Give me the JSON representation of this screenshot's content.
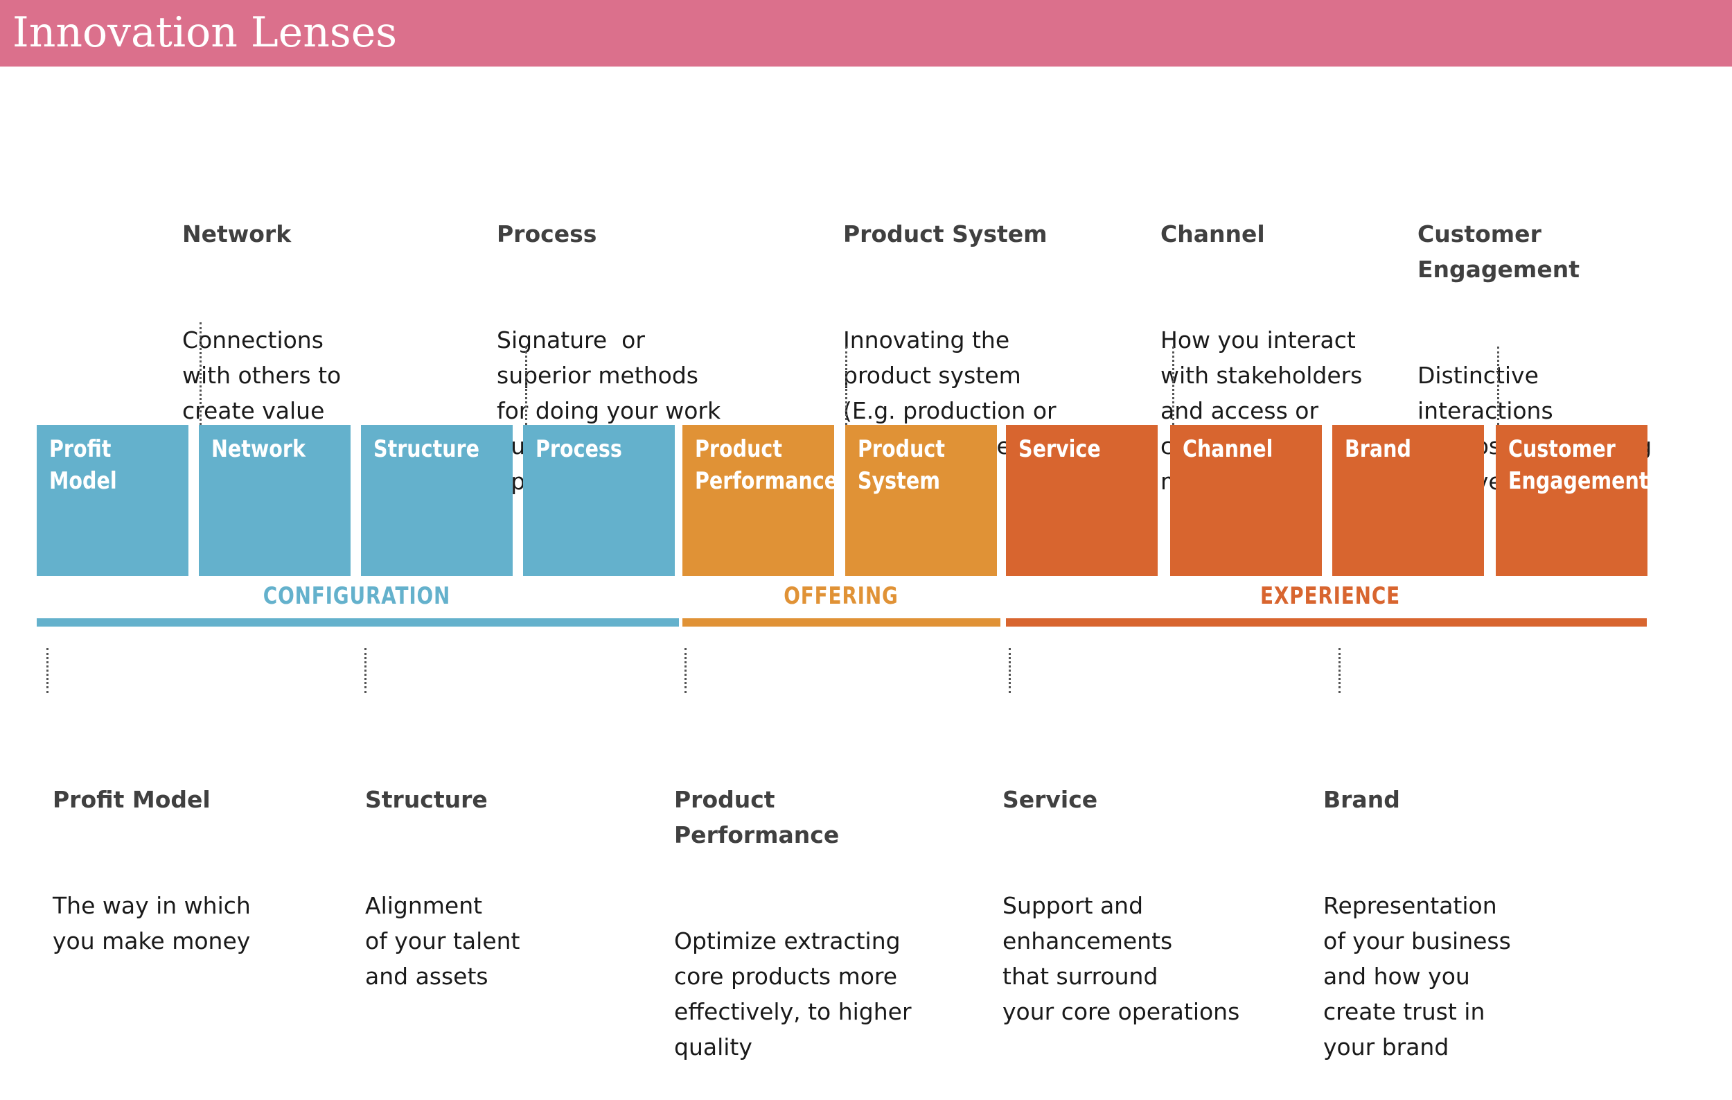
{
  "header": {
    "title": "Innovation Lenses"
  },
  "colors": {
    "header": "#db708c",
    "configuration": "#64b1cc",
    "offering": "#e09236",
    "experience": "#d8652f"
  },
  "boxes": [
    {
      "label": "Profit\nModel",
      "category": "configuration"
    },
    {
      "label": "Network",
      "category": "configuration"
    },
    {
      "label": "Structure",
      "category": "configuration"
    },
    {
      "label": "Process",
      "category": "configuration"
    },
    {
      "label": "Product\nPerformance",
      "category": "offering"
    },
    {
      "label": "Product\nSystem",
      "category": "offering"
    },
    {
      "label": "Service",
      "category": "experience"
    },
    {
      "label": "Channel",
      "category": "experience"
    },
    {
      "label": "Brand",
      "category": "experience"
    },
    {
      "label": "Customer\nEngagement",
      "category": "experience"
    }
  ],
  "categories": {
    "configuration": "CONFIGURATION",
    "offering": "OFFERING",
    "experience": "EXPERIENCE"
  },
  "descriptions": {
    "network": {
      "title": "Network",
      "body": "Connections\nwith others to\ncreate value"
    },
    "process": {
      "title": "Process",
      "body": "Signature  or\nsuperior methods\nfor doing your work\noutside of\noperations"
    },
    "product_system": {
      "title": "Product System",
      "body": "Innovating the\nproduct system\n(E.g. production or\ninnovative use of\nbyproducts)"
    },
    "channel": {
      "title": "Channel",
      "body": "How you interact\nwith stakeholders\nand access or\ncreate new\nmarkets"
    },
    "customer_engagement": {
      "title": "Customer\nEngagement",
      "body": "Distinctive\ninteractions\nyou foster, including\njoint ventures"
    },
    "profit_model": {
      "title": "Profit Model",
      "body": "The way in which\nyou make money"
    },
    "structure": {
      "title": "Structure",
      "body": "Alignment\nof your talent\nand assets"
    },
    "product_performance": {
      "title": "Product\nPerformance",
      "body": "Optimize extracting\ncore products more\neffectively, to higher\nquality"
    },
    "service": {
      "title": "Service",
      "body": "Support and\nenhancements\nthat surround\nyour core operations"
    },
    "brand": {
      "title": "Brand",
      "body": "Representation\nof your business\nand how you\ncreate trust in\nyour brand"
    }
  }
}
